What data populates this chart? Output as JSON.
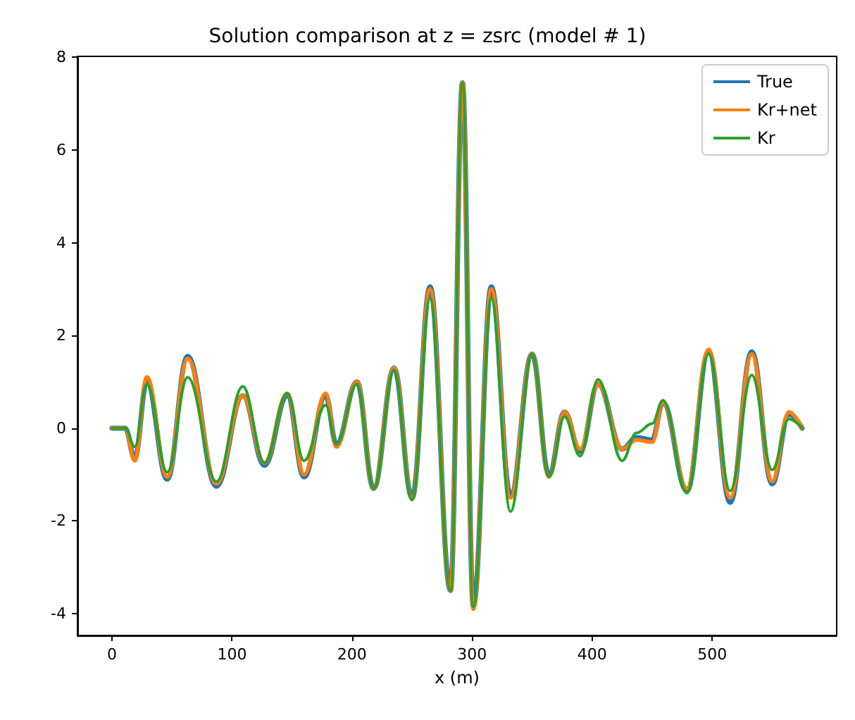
{
  "chart_data": {
    "type": "line",
    "title": "Solution comparison at z = zsrc (model # 1)",
    "xlabel": "x (m)",
    "x": [
      0,
      11,
      19,
      29,
      46,
      63,
      87,
      109,
      127,
      146,
      160,
      178,
      187,
      204,
      218,
      235,
      250,
      265,
      282,
      292,
      301,
      316,
      332,
      350,
      364,
      377,
      390,
      405,
      425,
      437,
      450,
      459,
      479,
      497,
      515,
      533,
      550,
      564,
      575
    ],
    "series": [
      {
        "name": "True",
        "color": "#1f77b4",
        "values": [
          0,
          0,
          -0.65,
          1.0,
          -1.1,
          1.55,
          -1.25,
          0.7,
          -0.8,
          0.7,
          -1.05,
          0.7,
          -0.35,
          1.0,
          -1.3,
          1.3,
          -1.5,
          3.05,
          -3.5,
          7.45,
          -3.85,
          3.05,
          -1.45,
          1.6,
          -1.0,
          0.35,
          -0.5,
          0.95,
          -0.45,
          -0.2,
          -0.25,
          0.55,
          -1.35,
          1.65,
          -1.6,
          1.65,
          -1.2,
          0.3,
          0
        ]
      },
      {
        "name": "Kr+net",
        "color": "#ff7f0e",
        "values": [
          0,
          0,
          -0.7,
          1.1,
          -1.05,
          1.5,
          -1.2,
          0.7,
          -0.75,
          0.75,
          -1.0,
          0.75,
          -0.4,
          1.0,
          -1.3,
          1.3,
          -1.5,
          3.0,
          -3.5,
          7.45,
          -3.9,
          3.0,
          -1.5,
          1.6,
          -1.05,
          0.35,
          -0.45,
          0.95,
          -0.45,
          -0.25,
          -0.3,
          0.55,
          -1.3,
          1.7,
          -1.5,
          1.6,
          -1.15,
          0.35,
          0
        ]
      },
      {
        "name": "Kr",
        "color": "#2ca02c",
        "values": [
          0,
          0,
          -0.4,
          0.95,
          -0.95,
          1.1,
          -1.15,
          0.9,
          -0.75,
          0.75,
          -0.7,
          0.5,
          -0.35,
          0.95,
          -1.3,
          1.25,
          -1.55,
          2.8,
          -3.5,
          7.45,
          -3.85,
          2.8,
          -1.8,
          1.6,
          -1.05,
          0.25,
          -0.6,
          1.05,
          -0.7,
          -0.1,
          0.1,
          0.6,
          -1.4,
          1.6,
          -1.35,
          1.15,
          -0.9,
          0.2,
          0
        ]
      }
    ],
    "xlim": [
      -28.75,
      603.75
    ],
    "xticks": [
      0,
      100,
      200,
      300,
      400,
      500
    ],
    "ylim": [
      -4.47,
      8.02
    ],
    "yticks": [
      -4,
      -2,
      0,
      2,
      4,
      6,
      8
    ],
    "grid": false,
    "legend": "top right",
    "marker": "none",
    "line_style": "solid"
  }
}
